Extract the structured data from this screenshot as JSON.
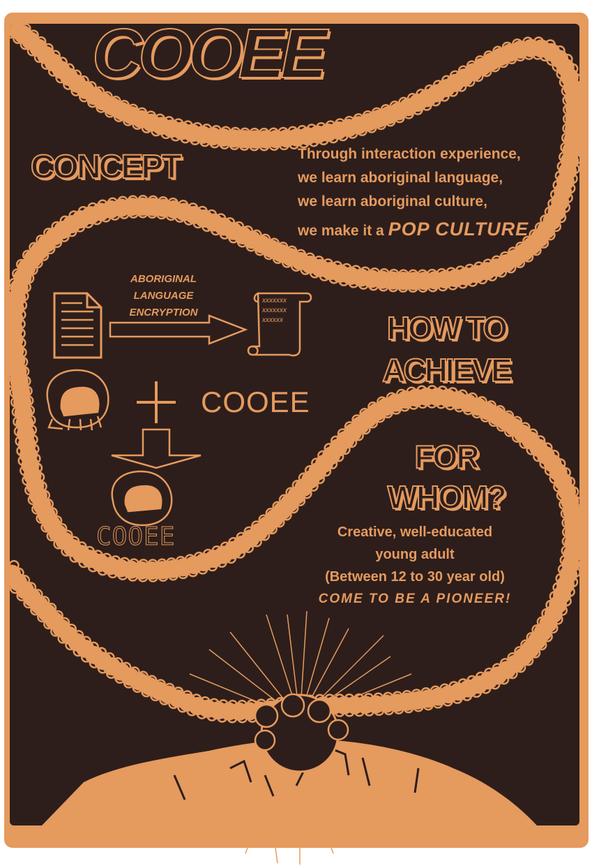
{
  "poster": {
    "title": "COOEE",
    "colors": {
      "orange": "#E59A5E",
      "dark": "#2D1E1B"
    }
  },
  "concept": {
    "heading": "CONCEPT",
    "lines": [
      "Through interaction experience,",
      "we learn aboriginal language,",
      "we learn aboriginal culture,"
    ],
    "last_line_prefix": "we make it a ",
    "last_line_emphasis": "POP CULTURE"
  },
  "flow": {
    "arrow_label": [
      "ABORIGINAL",
      "LANGUAGE",
      "ENCRYPTION"
    ],
    "scroll_text": [
      "xxxxxxx",
      "xxxxxxx",
      "xxxxxx"
    ],
    "plus_label": "COOEE",
    "result_label": "COOEE",
    "icons": [
      "document-icon",
      "scroll-icon",
      "mascot-face-icon",
      "plus-icon",
      "down-arrow-icon"
    ]
  },
  "how": {
    "heading_line1": "HOW TO",
    "heading_line2": "ACHIEVE"
  },
  "whom": {
    "heading_line1": "FOR",
    "heading_line2": "WHOM?",
    "lines": [
      "Creative, well-educated",
      "young adult",
      "(Between 12 to 30 year old)"
    ],
    "call_to_action": "COME TO BE A PIONEER!"
  }
}
